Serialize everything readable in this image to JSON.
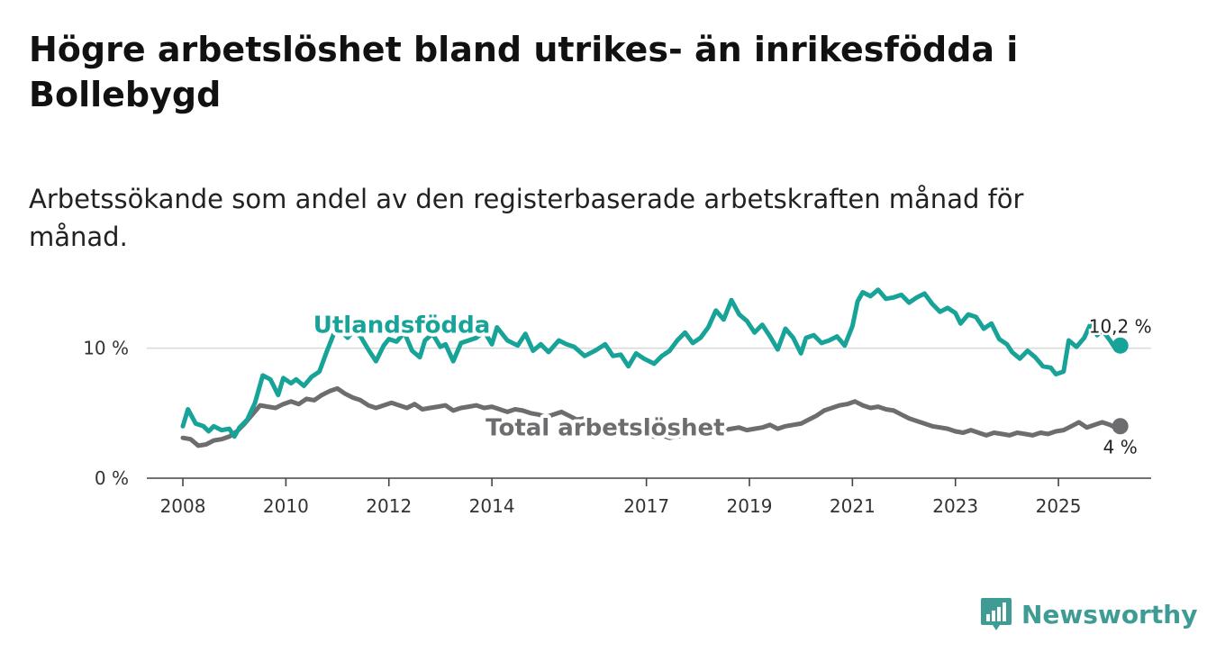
{
  "title": "Högre arbetslöshet bland utrikes- än inrikesfödda i Bollebygd",
  "subtitle": "Arbetssökande som andel av den registerbaserade arbetskraften månad för månad.",
  "brand": {
    "name": "Newsworthy",
    "icon": "newsworthy-logo-icon",
    "color": "#3f9c95"
  },
  "chart_data": {
    "type": "line",
    "x_unit": "year (decimal)",
    "y_unit": "%",
    "xlim": [
      2007.3,
      2026.8
    ],
    "ylim": [
      0,
      16
    ],
    "x_ticks": [
      {
        "value": 2008,
        "label": "2008"
      },
      {
        "value": 2010,
        "label": "2010"
      },
      {
        "value": 2012,
        "label": "2012"
      },
      {
        "value": 2014,
        "label": "2014"
      },
      {
        "value": 2017,
        "label": "2017"
      },
      {
        "value": 2019,
        "label": "2019"
      },
      {
        "value": 2021,
        "label": "2021"
      },
      {
        "value": 2023,
        "label": "2023"
      },
      {
        "value": 2025,
        "label": "2025"
      }
    ],
    "y_ticks": [
      {
        "value": 0,
        "label": "0 %"
      },
      {
        "value": 10,
        "label": "10 %"
      }
    ],
    "gridlines": [
      10
    ],
    "series": [
      {
        "name": "Utlandsfödda",
        "color": "#17a398",
        "label_at": [
          2012.25,
          11.8
        ],
        "end_label": "10,2 %",
        "end_value": 10.2,
        "points": [
          [
            2008.0,
            4.0
          ],
          [
            2008.1,
            5.3
          ],
          [
            2008.25,
            4.2
          ],
          [
            2008.4,
            4.0
          ],
          [
            2008.5,
            3.6
          ],
          [
            2008.6,
            4.0
          ],
          [
            2008.75,
            3.7
          ],
          [
            2008.9,
            3.8
          ],
          [
            2009.0,
            3.2
          ],
          [
            2009.1,
            3.9
          ],
          [
            2009.25,
            4.5
          ],
          [
            2009.4,
            5.8
          ],
          [
            2009.55,
            7.9
          ],
          [
            2009.7,
            7.6
          ],
          [
            2009.85,
            6.4
          ],
          [
            2009.95,
            7.7
          ],
          [
            2010.1,
            7.3
          ],
          [
            2010.2,
            7.6
          ],
          [
            2010.35,
            7.1
          ],
          [
            2010.5,
            7.8
          ],
          [
            2010.65,
            8.2
          ],
          [
            2010.8,
            9.8
          ],
          [
            2010.95,
            11.3
          ],
          [
            2011.1,
            11.2
          ],
          [
            2011.2,
            10.8
          ],
          [
            2011.3,
            11.3
          ],
          [
            2011.45,
            10.9
          ],
          [
            2011.6,
            9.9
          ],
          [
            2011.75,
            9.0
          ],
          [
            2011.9,
            10.2
          ],
          [
            2012.0,
            10.7
          ],
          [
            2012.15,
            10.5
          ],
          [
            2012.3,
            11.2
          ],
          [
            2012.45,
            9.8
          ],
          [
            2012.6,
            9.3
          ],
          [
            2012.7,
            10.6
          ],
          [
            2012.85,
            11.1
          ],
          [
            2013.0,
            10.1
          ],
          [
            2013.1,
            10.3
          ],
          [
            2013.25,
            9.0
          ],
          [
            2013.4,
            10.4
          ],
          [
            2013.55,
            10.6
          ],
          [
            2013.7,
            10.8
          ],
          [
            2013.85,
            11.3
          ],
          [
            2014.0,
            10.3
          ],
          [
            2014.1,
            11.6
          ],
          [
            2014.3,
            10.6
          ],
          [
            2014.5,
            10.2
          ],
          [
            2014.65,
            11.1
          ],
          [
            2014.8,
            9.8
          ],
          [
            2014.95,
            10.3
          ],
          [
            2015.1,
            9.7
          ],
          [
            2015.3,
            10.6
          ],
          [
            2015.45,
            10.3
          ],
          [
            2015.6,
            10.1
          ],
          [
            2015.8,
            9.4
          ],
          [
            2016.0,
            9.8
          ],
          [
            2016.2,
            10.3
          ],
          [
            2016.35,
            9.4
          ],
          [
            2016.5,
            9.5
          ],
          [
            2016.65,
            8.6
          ],
          [
            2016.8,
            9.6
          ],
          [
            2016.95,
            9.2
          ],
          [
            2017.15,
            8.8
          ],
          [
            2017.3,
            9.4
          ],
          [
            2017.45,
            9.8
          ],
          [
            2017.6,
            10.6
          ],
          [
            2017.75,
            11.2
          ],
          [
            2017.9,
            10.4
          ],
          [
            2018.05,
            10.8
          ],
          [
            2018.2,
            11.6
          ],
          [
            2018.35,
            12.9
          ],
          [
            2018.5,
            12.2
          ],
          [
            2018.65,
            13.7
          ],
          [
            2018.8,
            12.6
          ],
          [
            2018.95,
            12.1
          ],
          [
            2019.1,
            11.2
          ],
          [
            2019.25,
            11.8
          ],
          [
            2019.4,
            10.9
          ],
          [
            2019.55,
            9.9
          ],
          [
            2019.7,
            11.5
          ],
          [
            2019.85,
            10.8
          ],
          [
            2020.0,
            9.6
          ],
          [
            2020.1,
            10.8
          ],
          [
            2020.25,
            11.0
          ],
          [
            2020.4,
            10.4
          ],
          [
            2020.55,
            10.6
          ],
          [
            2020.7,
            10.9
          ],
          [
            2020.85,
            10.2
          ],
          [
            2021.0,
            11.7
          ],
          [
            2021.1,
            13.6
          ],
          [
            2021.2,
            14.3
          ],
          [
            2021.35,
            14.0
          ],
          [
            2021.5,
            14.5
          ],
          [
            2021.65,
            13.8
          ],
          [
            2021.8,
            13.9
          ],
          [
            2021.95,
            14.1
          ],
          [
            2022.1,
            13.5
          ],
          [
            2022.25,
            13.9
          ],
          [
            2022.4,
            14.2
          ],
          [
            2022.55,
            13.4
          ],
          [
            2022.7,
            12.8
          ],
          [
            2022.85,
            13.1
          ],
          [
            2023.0,
            12.7
          ],
          [
            2023.1,
            11.9
          ],
          [
            2023.25,
            12.6
          ],
          [
            2023.4,
            12.4
          ],
          [
            2023.55,
            11.5
          ],
          [
            2023.7,
            11.9
          ],
          [
            2023.85,
            10.7
          ],
          [
            2024.0,
            10.3
          ],
          [
            2024.1,
            9.7
          ],
          [
            2024.25,
            9.2
          ],
          [
            2024.4,
            9.8
          ],
          [
            2024.55,
            9.3
          ],
          [
            2024.7,
            8.6
          ],
          [
            2024.85,
            8.5
          ],
          [
            2024.95,
            8.0
          ],
          [
            2025.1,
            8.2
          ],
          [
            2025.2,
            10.6
          ],
          [
            2025.35,
            10.1
          ],
          [
            2025.5,
            10.8
          ],
          [
            2025.65,
            12.1
          ],
          [
            2025.75,
            11.0
          ],
          [
            2025.85,
            11.4
          ],
          [
            2026.0,
            10.6
          ],
          [
            2026.1,
            10.0
          ],
          [
            2026.2,
            10.2
          ]
        ]
      },
      {
        "name": "Total arbetslöshet",
        "color": "#6d6d70",
        "label_at": [
          2016.2,
          3.9
        ],
        "end_label": "4 %",
        "end_value": 4.0,
        "points": [
          [
            2008.0,
            3.1
          ],
          [
            2008.15,
            3.0
          ],
          [
            2008.3,
            2.5
          ],
          [
            2008.45,
            2.6
          ],
          [
            2008.6,
            2.9
          ],
          [
            2008.75,
            3.0
          ],
          [
            2008.9,
            3.2
          ],
          [
            2009.05,
            3.6
          ],
          [
            2009.2,
            4.2
          ],
          [
            2009.35,
            4.9
          ],
          [
            2009.5,
            5.6
          ],
          [
            2009.65,
            5.5
          ],
          [
            2009.8,
            5.4
          ],
          [
            2009.95,
            5.7
          ],
          [
            2010.1,
            5.9
          ],
          [
            2010.25,
            5.7
          ],
          [
            2010.4,
            6.1
          ],
          [
            2010.55,
            6.0
          ],
          [
            2010.7,
            6.4
          ],
          [
            2010.85,
            6.7
          ],
          [
            2011.0,
            6.9
          ],
          [
            2011.15,
            6.5
          ],
          [
            2011.3,
            6.2
          ],
          [
            2011.45,
            6.0
          ],
          [
            2011.6,
            5.6
          ],
          [
            2011.75,
            5.4
          ],
          [
            2011.9,
            5.6
          ],
          [
            2012.05,
            5.8
          ],
          [
            2012.2,
            5.6
          ],
          [
            2012.35,
            5.4
          ],
          [
            2012.5,
            5.7
          ],
          [
            2012.65,
            5.3
          ],
          [
            2012.8,
            5.4
          ],
          [
            2012.95,
            5.5
          ],
          [
            2013.1,
            5.6
          ],
          [
            2013.25,
            5.2
          ],
          [
            2013.4,
            5.4
          ],
          [
            2013.55,
            5.5
          ],
          [
            2013.7,
            5.6
          ],
          [
            2013.85,
            5.4
          ],
          [
            2014.0,
            5.5
          ],
          [
            2014.15,
            5.3
          ],
          [
            2014.3,
            5.1
          ],
          [
            2014.45,
            5.3
          ],
          [
            2014.6,
            5.2
          ],
          [
            2014.75,
            5.0
          ],
          [
            2014.9,
            4.9
          ],
          [
            2015.05,
            4.7
          ],
          [
            2015.2,
            4.9
          ],
          [
            2015.35,
            5.1
          ],
          [
            2015.5,
            4.8
          ],
          [
            2015.65,
            4.5
          ],
          [
            2015.8,
            4.6
          ],
          [
            2015.95,
            4.3
          ],
          [
            2016.1,
            4.1
          ],
          [
            2016.25,
            4.2
          ],
          [
            2016.4,
            3.8
          ],
          [
            2016.55,
            3.7
          ],
          [
            2016.7,
            3.6
          ],
          [
            2016.85,
            3.5
          ],
          [
            2017.0,
            3.4
          ],
          [
            2017.15,
            3.2
          ],
          [
            2017.3,
            3.3
          ],
          [
            2017.45,
            3.1
          ],
          [
            2017.6,
            3.2
          ],
          [
            2017.75,
            3.3
          ],
          [
            2017.9,
            3.4
          ],
          [
            2018.05,
            3.6
          ],
          [
            2018.2,
            3.5
          ],
          [
            2018.35,
            3.6
          ],
          [
            2018.5,
            3.7
          ],
          [
            2018.65,
            3.8
          ],
          [
            2018.8,
            3.9
          ],
          [
            2018.95,
            3.7
          ],
          [
            2019.1,
            3.8
          ],
          [
            2019.25,
            3.9
          ],
          [
            2019.4,
            4.1
          ],
          [
            2019.55,
            3.8
          ],
          [
            2019.7,
            4.0
          ],
          [
            2019.85,
            4.1
          ],
          [
            2020.0,
            4.2
          ],
          [
            2020.15,
            4.5
          ],
          [
            2020.3,
            4.8
          ],
          [
            2020.45,
            5.2
          ],
          [
            2020.6,
            5.4
          ],
          [
            2020.75,
            5.6
          ],
          [
            2020.9,
            5.7
          ],
          [
            2021.05,
            5.9
          ],
          [
            2021.2,
            5.6
          ],
          [
            2021.35,
            5.4
          ],
          [
            2021.5,
            5.5
          ],
          [
            2021.65,
            5.3
          ],
          [
            2021.8,
            5.2
          ],
          [
            2021.95,
            4.9
          ],
          [
            2022.1,
            4.6
          ],
          [
            2022.25,
            4.4
          ],
          [
            2022.4,
            4.2
          ],
          [
            2022.55,
            4.0
          ],
          [
            2022.7,
            3.9
          ],
          [
            2022.85,
            3.8
          ],
          [
            2023.0,
            3.6
          ],
          [
            2023.15,
            3.5
          ],
          [
            2023.3,
            3.7
          ],
          [
            2023.45,
            3.5
          ],
          [
            2023.6,
            3.3
          ],
          [
            2023.75,
            3.5
          ],
          [
            2023.9,
            3.4
          ],
          [
            2024.05,
            3.3
          ],
          [
            2024.2,
            3.5
          ],
          [
            2024.35,
            3.4
          ],
          [
            2024.5,
            3.3
          ],
          [
            2024.65,
            3.5
          ],
          [
            2024.8,
            3.4
          ],
          [
            2024.95,
            3.6
          ],
          [
            2025.1,
            3.7
          ],
          [
            2025.25,
            4.0
          ],
          [
            2025.4,
            4.3
          ],
          [
            2025.55,
            3.9
          ],
          [
            2025.7,
            4.1
          ],
          [
            2025.85,
            4.3
          ],
          [
            2026.0,
            4.1
          ],
          [
            2026.1,
            3.9
          ],
          [
            2026.2,
            4.0
          ]
        ]
      }
    ]
  }
}
